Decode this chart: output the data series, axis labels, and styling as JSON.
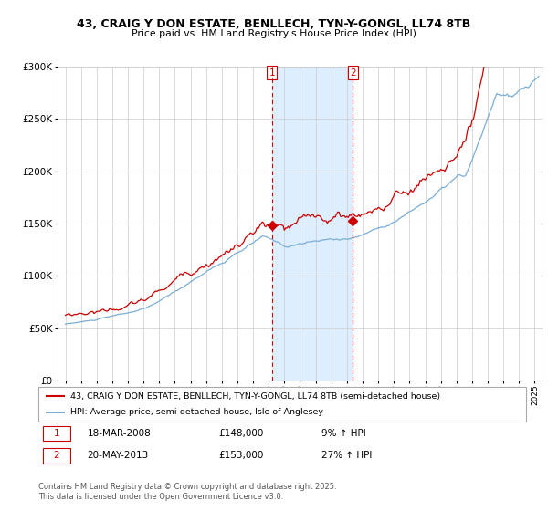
{
  "title": "43, CRAIG Y DON ESTATE, BENLLECH, TYN-Y-GONGL, LL74 8TB",
  "subtitle": "Price paid vs. HM Land Registry's House Price Index (HPI)",
  "legend_line1": "43, CRAIG Y DON ESTATE, BENLLECH, TYN-Y-GONGL, LL74 8TB (semi-detached house)",
  "legend_line2": "HPI: Average price, semi-detached house, Isle of Anglesey",
  "footnote": "Contains HM Land Registry data © Crown copyright and database right 2025.\nThis data is licensed under the Open Government Licence v3.0.",
  "transaction1_date": "18-MAR-2008",
  "transaction1_price": "£148,000",
  "transaction1_hpi": "9% ↑ HPI",
  "transaction2_date": "20-MAY-2013",
  "transaction2_price": "£153,000",
  "transaction2_hpi": "27% ↑ HPI",
  "vline1_x": 2008.21,
  "vline2_x": 2013.38,
  "t1_marker_y": 148000,
  "t2_marker_y": 153000,
  "ylim_min": 0,
  "ylim_max": 300000,
  "xlim_min": 1994.5,
  "xlim_max": 2025.5,
  "red_color": "#cc0000",
  "blue_color": "#7aaed6",
  "shaded_color": "#ddeeff",
  "grid_color": "#cccccc",
  "yticks": [
    0,
    50000,
    100000,
    150000,
    200000,
    250000,
    300000
  ]
}
